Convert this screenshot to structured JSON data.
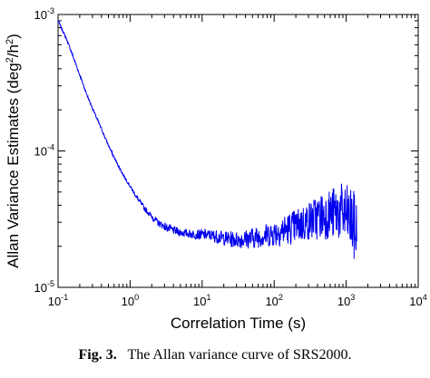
{
  "caption": {
    "label": "Fig. 3.",
    "text": "The Allan variance curve of SRS2000."
  },
  "chart_data": {
    "type": "line",
    "xlabel": "Correlation Time (s)",
    "ylabel": "Allan Variance Estimates (deg²/h²)",
    "ylabel_parts": [
      "Allan Variance Estimates (deg",
      "2",
      "/h",
      "2",
      ")"
    ],
    "x_scale": "log",
    "y_scale": "log",
    "xlim": [
      0.1,
      10000
    ],
    "ylim": [
      1e-05,
      0.001
    ],
    "x_ticks": [
      {
        "base": "10",
        "exp": "-1"
      },
      {
        "base": "10",
        "exp": "0"
      },
      {
        "base": "10",
        "exp": "1"
      },
      {
        "base": "10",
        "exp": "2"
      },
      {
        "base": "10",
        "exp": "3"
      },
      {
        "base": "10",
        "exp": "4"
      }
    ],
    "y_ticks": [
      {
        "base": "10",
        "exp": "-5"
      },
      {
        "base": "10",
        "exp": "-4"
      },
      {
        "base": "10",
        "exp": "-3"
      }
    ],
    "grid": false,
    "series": [
      {
        "color": "#0000ee",
        "x": [
          0.1,
          0.13,
          0.16,
          0.2,
          0.25,
          0.32,
          0.4,
          0.5,
          0.63,
          0.8,
          1,
          1.26,
          1.58,
          2,
          2.5,
          3.2,
          4,
          5,
          6.3,
          8,
          10,
          12.6,
          15.8,
          20,
          25,
          32,
          40,
          50,
          63,
          80,
          100,
          126,
          158,
          200,
          251,
          316,
          398,
          500,
          600,
          700,
          800,
          900,
          1000,
          1100,
          1200,
          1300,
          1400
        ],
        "y": [
          0.0009,
          0.00067,
          0.0005,
          0.00036,
          0.00026,
          0.00019,
          0.000145,
          0.00011,
          8.5e-05,
          6.7e-05,
          5.5e-05,
          4.5e-05,
          3.8e-05,
          3.3e-05,
          2.95e-05,
          2.75e-05,
          2.62e-05,
          2.53e-05,
          2.48e-05,
          2.45e-05,
          2.43e-05,
          2.42e-05,
          2.36e-05,
          2.3e-05,
          2.25e-05,
          2.24e-05,
          2.26e-05,
          2.3e-05,
          2.35e-05,
          2.42e-05,
          2.5e-05,
          2.6e-05,
          2.7e-05,
          2.8e-05,
          2.95e-05,
          3.1e-05,
          3.25e-05,
          3.4e-05,
          3.45e-05,
          3.5e-05,
          3.55e-05,
          3.5e-05,
          3.35e-05,
          3.2e-05,
          3e-05,
          2.7e-05,
          2.4e-05
        ],
        "noise": [
          0.01,
          0.01,
          0.01,
          0.01,
          0.01,
          0.01,
          0.01,
          0.01,
          0.01,
          0.01,
          0.01,
          0.015,
          0.02,
          0.02,
          0.025,
          0.03,
          0.03,
          0.03,
          0.03,
          0.035,
          0.04,
          0.04,
          0.05,
          0.05,
          0.06,
          0.06,
          0.07,
          0.08,
          0.08,
          0.09,
          0.1,
          0.11,
          0.12,
          0.13,
          0.14,
          0.15,
          0.17,
          0.18,
          0.19,
          0.2,
          0.21,
          0.22,
          0.23,
          0.24,
          0.25,
          0.27,
          0.3
        ]
      }
    ]
  }
}
